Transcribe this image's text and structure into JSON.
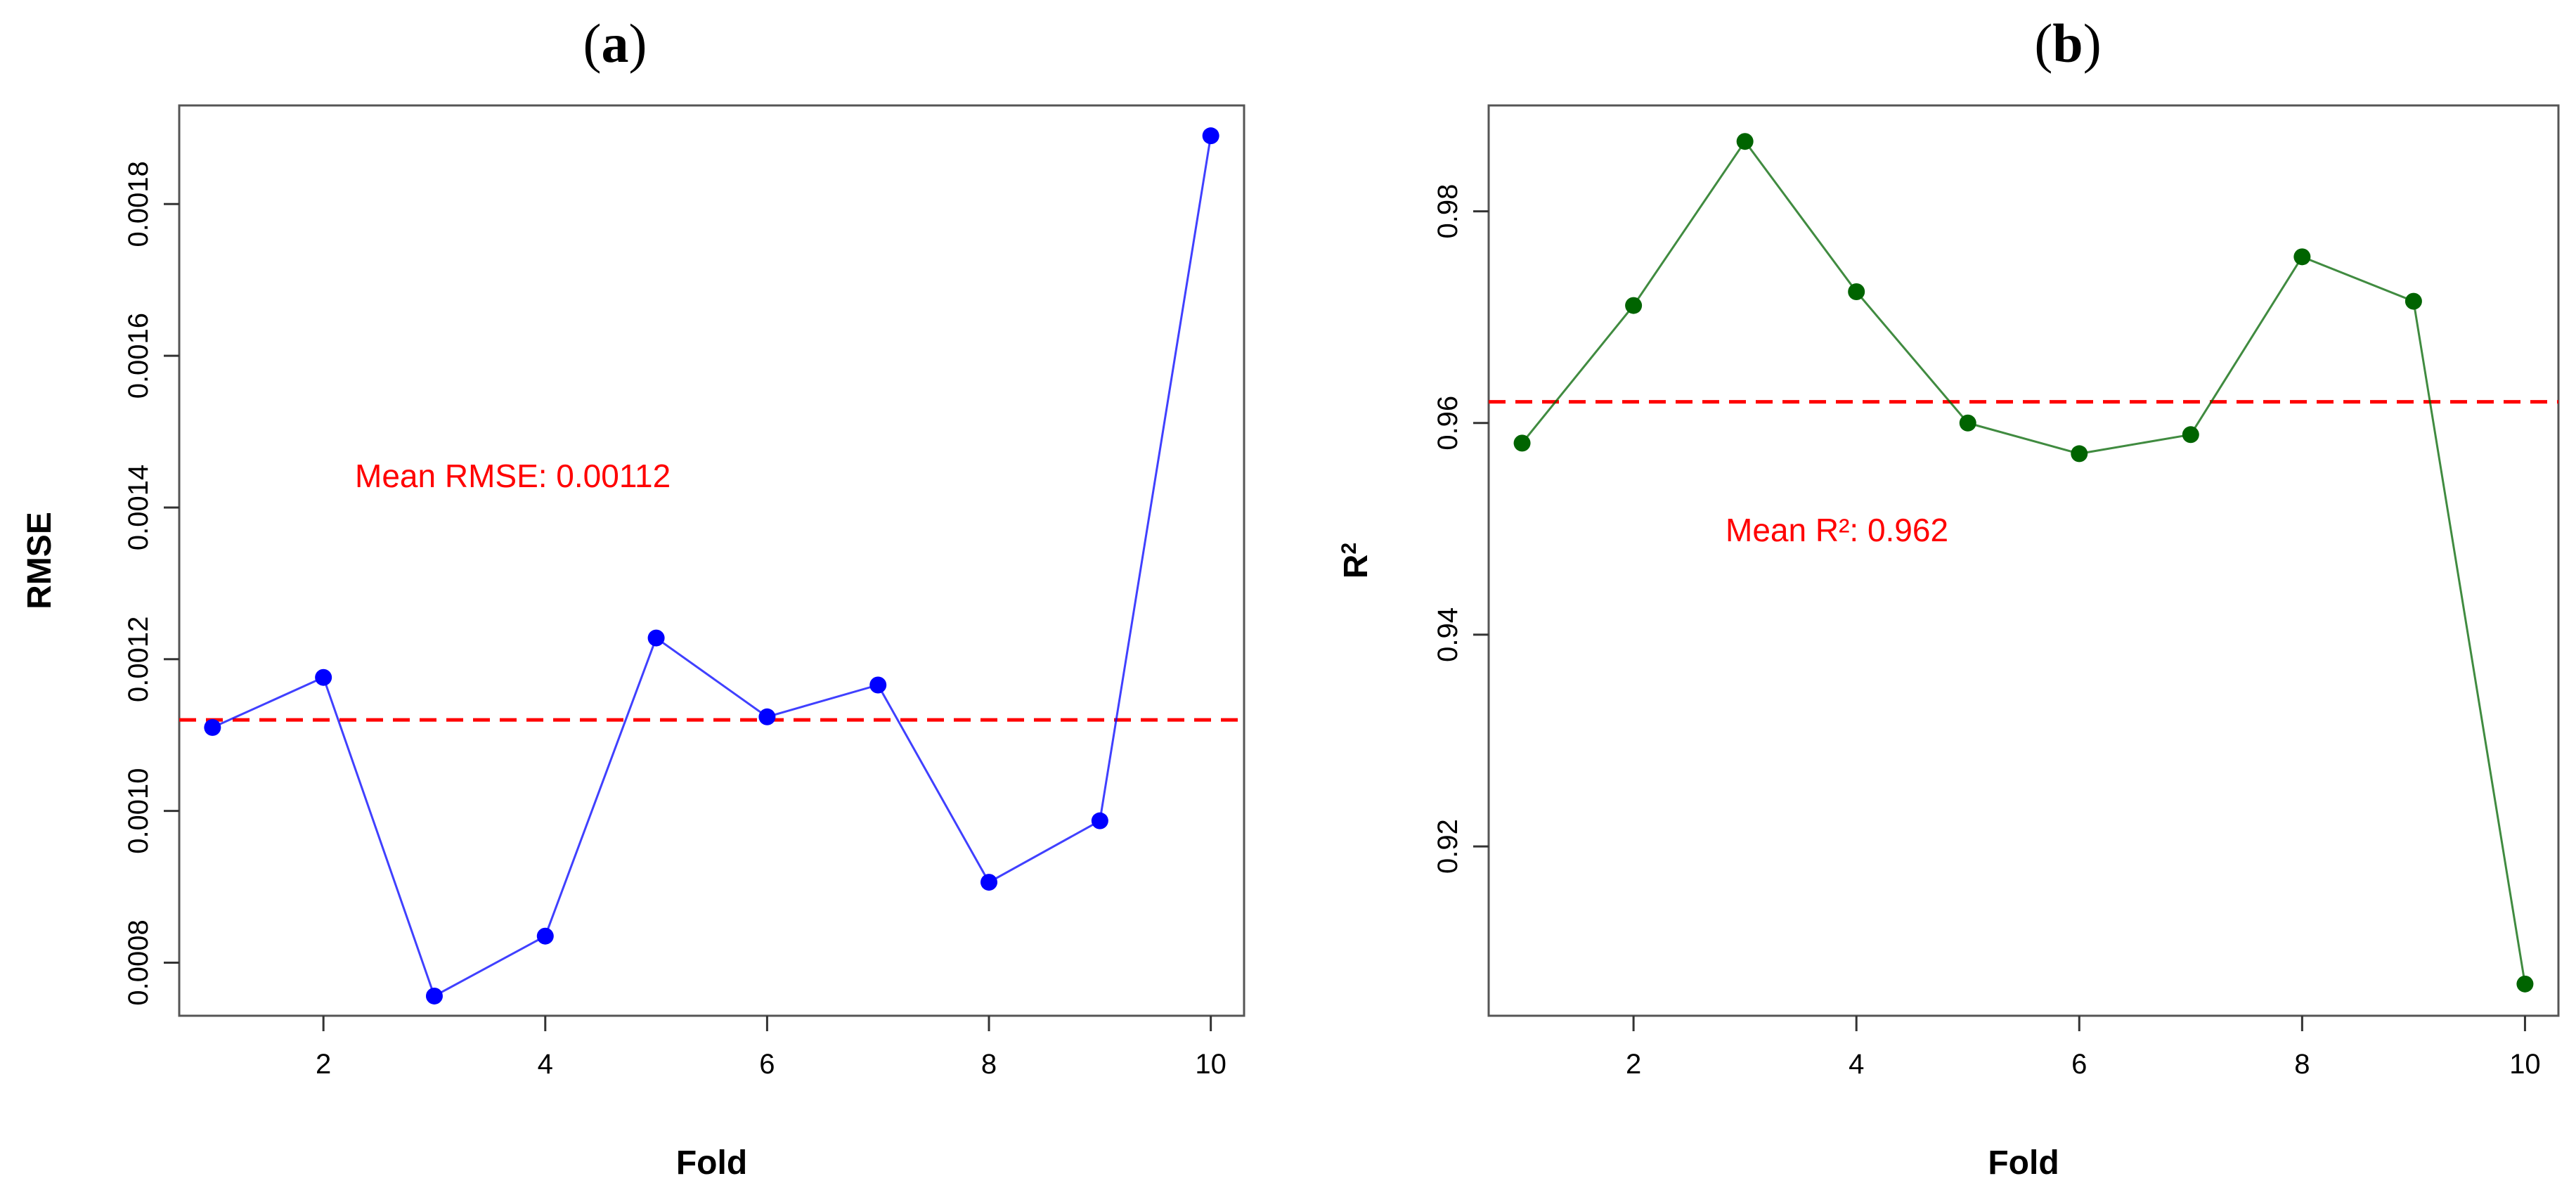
{
  "chart_data": [
    {
      "type": "line",
      "panel_label": "a",
      "xlabel": "Fold",
      "ylabel": "RMSE",
      "x": [
        1,
        2,
        3,
        4,
        5,
        6,
        7,
        8,
        9,
        10
      ],
      "series": [
        {
          "values": [
            0.00111,
            0.001176,
            0.000756,
            0.000835,
            0.001228,
            0.001124,
            0.001166,
            0.000906,
            0.000987,
            0.00189
          ],
          "color": "#0000ff"
        }
      ],
      "mean_line": {
        "value": 0.00112,
        "color": "#ff0000",
        "style": "dashed"
      },
      "annotation": "Mean RMSE: 0.00112",
      "annotation_color": "#ff0000",
      "xlim": [
        0.7,
        10.3
      ],
      "ylim": [
        0.00073,
        0.00193
      ],
      "xticks": [
        2,
        4,
        6,
        8,
        10
      ],
      "yticks": [
        0.0008,
        0.001,
        0.0012,
        0.0014,
        0.0016,
        0.0018
      ],
      "ytick_labels": [
        "0.0008",
        "0.0010",
        "0.0012",
        "0.0014",
        "0.0016",
        "0.0018"
      ],
      "grid": false
    },
    {
      "type": "line",
      "panel_label": "b",
      "xlabel": "Fold",
      "ylabel": "R",
      "ylabel_superscript": "2",
      "x": [
        1,
        2,
        3,
        4,
        5,
        6,
        7,
        8,
        9,
        10
      ],
      "series": [
        {
          "values": [
            0.9581,
            0.9711,
            0.9866,
            0.9724,
            0.96,
            0.9571,
            0.9589,
            0.9757,
            0.9715,
            0.907
          ],
          "color": "#006400"
        }
      ],
      "mean_line": {
        "value": 0.962,
        "color": "#ff0000",
        "style": "dashed"
      },
      "annotation": "Mean R²: 0.962",
      "annotation_color": "#ff0000",
      "xlim": [
        0.7,
        10.3
      ],
      "ylim": [
        0.904,
        0.99
      ],
      "xticks": [
        2,
        4,
        6,
        8,
        10
      ],
      "yticks": [
        0.92,
        0.94,
        0.96,
        0.98
      ],
      "ytick_labels": [
        "0.92",
        "0.94",
        "0.96",
        "0.98"
      ],
      "grid": false
    }
  ]
}
